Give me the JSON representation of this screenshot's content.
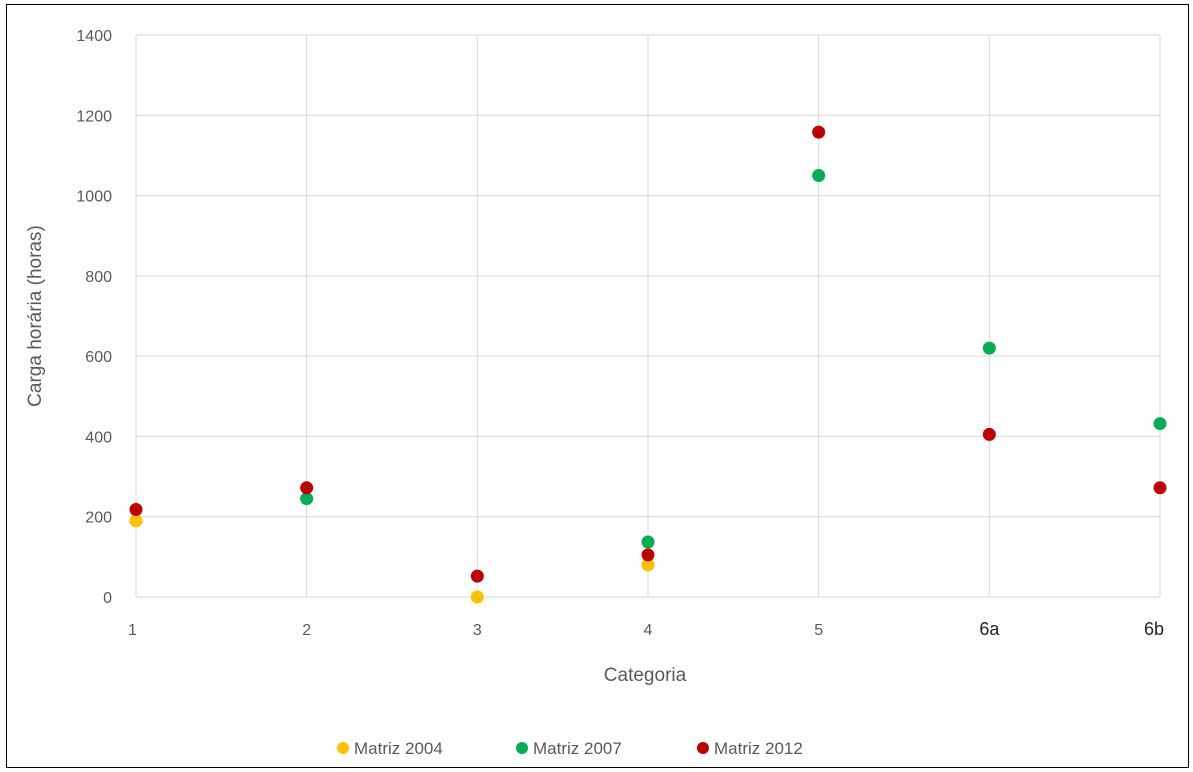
{
  "colors": {
    "background": "#ffffff",
    "grid": "#d9d9d9",
    "text": "#595959",
    "series": [
      "#ffc000",
      "#00b050",
      "#c00000"
    ]
  },
  "chart_data": {
    "type": "scatter",
    "title": "",
    "xlabel": "Categoria",
    "ylabel": "Carga horária (horas)",
    "categories": [
      "1",
      "2",
      "3",
      "4",
      "5",
      "6a",
      "6b"
    ],
    "ylim": [
      0,
      1400
    ],
    "yticks": [
      "0",
      "200",
      "400",
      "600",
      "800",
      "1000",
      "1200",
      "1400"
    ],
    "grid": true,
    "legend_position": "bottom",
    "series": [
      {
        "name": "Matriz 2004",
        "values": [
          190,
          null,
          0,
          80,
          null,
          null,
          null
        ]
      },
      {
        "name": "Matriz 2007",
        "values": [
          null,
          245,
          null,
          137,
          1050,
          620,
          432
        ]
      },
      {
        "name": "Matriz 2012",
        "values": [
          218,
          272,
          52,
          105,
          1158,
          405,
          272
        ]
      }
    ]
  }
}
